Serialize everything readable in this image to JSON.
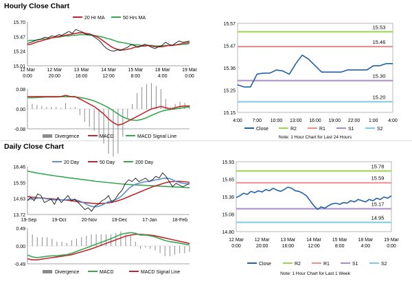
{
  "titles": {
    "hourly": "Hourly Close Chart",
    "daily": "Daily Close Chart"
  },
  "colors": {
    "price": "#1f3f7a",
    "ma_red": "#c0262c",
    "ma_green": "#35a84f",
    "ma_blue": "#5b8fd1",
    "r2": "#9bd34b",
    "r1": "#f28a8a",
    "s1": "#a98bc7",
    "s2": "#7ec9e0",
    "close": "#1f5fa8",
    "hist": "#8a8a8a",
    "axis": "#888888"
  },
  "chart_data": [
    {
      "id": "hourly_price",
      "type": "line",
      "ylim": [
        15.01,
        15.7
      ],
      "yticks": [
        "15.70",
        "15.47",
        "15.24",
        "15.01"
      ],
      "xticks": [
        [
          "12 Mar",
          "0:00"
        ],
        [
          "12 Mar",
          "20:00"
        ],
        [
          "13 Mar",
          "16:00"
        ],
        [
          "14 Mar",
          "12:00"
        ],
        [
          "15 Mar",
          "8:00"
        ],
        [
          "18 Mar",
          "4:00"
        ],
        [
          "19 Mar",
          "0:00"
        ]
      ],
      "legend": [
        "20 Hr MA",
        "50 Hrs MA"
      ],
      "series": [
        {
          "name": "Close",
          "values": [
            15.36,
            15.38,
            15.4,
            15.42,
            15.43,
            15.46,
            15.45,
            15.48,
            15.47,
            15.5,
            15.49,
            15.52,
            15.55,
            15.52,
            15.58,
            15.56,
            15.54,
            15.5,
            15.51,
            15.48,
            15.44,
            15.4,
            15.33,
            15.28,
            15.25,
            15.24,
            15.26,
            15.25,
            15.28,
            15.3,
            15.34,
            15.33,
            15.3,
            15.32,
            15.35,
            15.33,
            15.3,
            15.28,
            15.31,
            15.33,
            15.38,
            15.35,
            15.33,
            15.37,
            15.4,
            15.38,
            15.39,
            15.4
          ]
        },
        {
          "name": "20 Hr MA",
          "values": [
            15.34,
            15.35,
            15.37,
            15.39,
            15.4,
            15.42,
            15.43,
            15.45,
            15.46,
            15.47,
            15.48,
            15.49,
            15.5,
            15.51,
            15.52,
            15.53,
            15.53,
            15.52,
            15.51,
            15.49,
            15.47,
            15.44,
            15.4,
            15.36,
            15.32,
            15.29,
            15.27,
            15.26,
            15.26,
            15.27,
            15.28,
            15.3,
            15.31,
            15.32,
            15.32,
            15.33,
            15.32,
            15.31,
            15.31,
            15.31,
            15.32,
            15.33,
            15.33,
            15.34,
            15.35,
            15.36,
            15.37,
            15.38
          ]
        },
        {
          "name": "50 Hrs MA",
          "values": [
            15.4,
            15.41,
            15.41,
            15.42,
            15.43,
            15.43,
            15.44,
            15.45,
            15.46,
            15.46,
            15.47,
            15.48,
            15.48,
            15.49,
            15.49,
            15.5,
            15.5,
            15.5,
            15.49,
            15.49,
            15.48,
            15.47,
            15.46,
            15.44,
            15.43,
            15.41,
            15.39,
            15.38,
            15.37,
            15.36,
            15.35,
            15.34,
            15.34,
            15.33,
            15.33,
            15.33,
            15.33,
            15.32,
            15.32,
            15.32,
            15.33,
            15.33,
            15.33,
            15.34,
            15.34,
            15.35,
            15.35,
            15.36
          ]
        }
      ]
    },
    {
      "id": "hourly_macd",
      "type": "line",
      "ylim": [
        -0.08,
        0.08
      ],
      "yticks": [
        "0.08",
        "0.00",
        "-0.08"
      ],
      "legend": [
        "Divergence",
        "MACD",
        "MACD Signal Line"
      ],
      "series": [
        {
          "name": "MACD",
          "values": [
            0.05,
            0.05,
            0.05,
            0.05,
            0.05,
            0.05,
            0.05,
            0.05,
            0.055,
            0.05,
            0.05,
            0.04,
            0.03,
            0.02,
            0.01,
            -0.005,
            -0.02,
            -0.04,
            -0.055,
            -0.065,
            -0.06,
            -0.05,
            -0.04,
            -0.03,
            -0.02,
            -0.01,
            0.0,
            0.005,
            0.01,
            0.005,
            0.0,
            0.005,
            0.01,
            0.012,
            0.012
          ]
        },
        {
          "name": "MACD Signal Line",
          "values": [
            0.045,
            0.045,
            0.046,
            0.047,
            0.048,
            0.048,
            0.048,
            0.049,
            0.049,
            0.049,
            0.048,
            0.046,
            0.043,
            0.038,
            0.032,
            0.024,
            0.015,
            0.005,
            -0.007,
            -0.02,
            -0.032,
            -0.04,
            -0.045,
            -0.046,
            -0.042,
            -0.035,
            -0.026,
            -0.018,
            -0.01,
            -0.005,
            -0.002,
            0.0,
            0.003,
            0.006,
            0.008
          ]
        }
      ]
    },
    {
      "id": "hourly_levels",
      "type": "line",
      "ylim": [
        15.15,
        15.57
      ],
      "yticks": [
        "15.57",
        "15.47",
        "15.36",
        "15.25",
        "15.15"
      ],
      "xticks": [
        "4:00",
        "7:00",
        "10:00",
        "13:00",
        "16:00",
        "19:00",
        "22:00",
        "1:00",
        "4:00"
      ],
      "levels": [
        {
          "name": "R2",
          "value": 15.53,
          "label": "15.53"
        },
        {
          "name": "R1",
          "value": 15.46,
          "label": "15.46"
        },
        {
          "name": "S1",
          "value": 15.3,
          "label": "15.30"
        },
        {
          "name": "S2",
          "value": 15.2,
          "label": "15.20"
        }
      ],
      "legend": [
        "Close",
        "R2",
        "R1",
        "S1",
        "S2"
      ],
      "note": "Note: 1 Hour Chart for Last 24 Hours",
      "series": [
        {
          "name": "Close",
          "values": [
            15.28,
            15.27,
            15.27,
            15.33,
            15.335,
            15.335,
            15.35,
            15.345,
            15.33,
            15.38,
            15.42,
            15.4,
            15.37,
            15.34,
            15.34,
            15.34,
            15.34,
            15.35,
            15.35,
            15.35,
            15.35,
            15.37,
            15.37,
            15.38,
            15.38
          ]
        }
      ]
    },
    {
      "id": "daily_price",
      "type": "line",
      "ylim": [
        13.72,
        16.46
      ],
      "yticks": [
        "16.46",
        "15.55",
        "14.63",
        "13.72"
      ],
      "xticks": [
        "19-Sep",
        "19-Oct",
        "20-Nov",
        "19-Dec",
        "17-Jan",
        "18-Feb"
      ],
      "legend": [
        "20 Day",
        "50 Day",
        "200 Day"
      ],
      "series": [
        {
          "name": "Close",
          "values": [
            14.5,
            14.7,
            14.5,
            14.9,
            14.8,
            14.4,
            14.5,
            14.6,
            14.3,
            14.7,
            14.4,
            14.6,
            14.8,
            14.5,
            14.6,
            14.4,
            14.2,
            14.0,
            14.1,
            13.9,
            14.2,
            14.3,
            14.5,
            14.6,
            14.8,
            14.4,
            14.6,
            14.9,
            15.1,
            15.5,
            15.7,
            15.6,
            15.8,
            15.6,
            15.7,
            15.8,
            15.6,
            15.7,
            15.9,
            15.8,
            16.1,
            15.9,
            15.6,
            15.3,
            15.5,
            15.4,
            15.3,
            15.4,
            15.5
          ]
        },
        {
          "name": "20 Day",
          "values": [
            14.6,
            14.6,
            14.62,
            14.65,
            14.66,
            14.64,
            14.6,
            14.58,
            14.55,
            14.56,
            14.55,
            14.55,
            14.58,
            14.58,
            14.56,
            14.52,
            14.45,
            14.35,
            14.25,
            14.18,
            14.15,
            14.18,
            14.25,
            14.35,
            14.45,
            14.5,
            14.55,
            14.65,
            14.8,
            15.0,
            15.2,
            15.35,
            15.45,
            15.5,
            15.55,
            15.6,
            15.62,
            15.65,
            15.7,
            15.72,
            15.78,
            15.8,
            15.78,
            15.7,
            15.6,
            15.55,
            15.5,
            15.48,
            15.45
          ]
        },
        {
          "name": "50 Day",
          "values": [
            14.75,
            14.72,
            14.7,
            14.68,
            14.67,
            14.65,
            14.63,
            14.62,
            14.6,
            14.58,
            14.56,
            14.55,
            14.53,
            14.5,
            14.48,
            14.45,
            14.42,
            14.4,
            14.38,
            14.36,
            14.35,
            14.34,
            14.35,
            14.36,
            14.38,
            14.42,
            14.46,
            14.52,
            14.58,
            14.66,
            14.74,
            14.82,
            14.9,
            14.98,
            15.06,
            15.14,
            15.22,
            15.3,
            15.36,
            15.42,
            15.48,
            15.54,
            15.58,
            15.6,
            15.62,
            15.62,
            15.6,
            15.58,
            15.56
          ]
        },
        {
          "name": "200 Day",
          "values": [
            16.2,
            16.16,
            16.12,
            16.08,
            16.05,
            16.02,
            15.99,
            15.96,
            15.93,
            15.9,
            15.88,
            15.85,
            15.82,
            15.8,
            15.77,
            15.75,
            15.72,
            15.7,
            15.67,
            15.65,
            15.62,
            15.6,
            15.58,
            15.56,
            15.54,
            15.52,
            15.5,
            15.48,
            15.46,
            15.45,
            15.43,
            15.42,
            15.41,
            15.4,
            15.39,
            15.38,
            15.37,
            15.36,
            15.35,
            15.34,
            15.33,
            15.32,
            15.31,
            15.3,
            15.29,
            15.28,
            15.27,
            15.26,
            15.25
          ]
        }
      ]
    },
    {
      "id": "daily_macd",
      "type": "line",
      "ylim": [
        -0.49,
        0.49
      ],
      "yticks": [
        "0.49",
        "0.00",
        "-0.49"
      ],
      "legend": [
        "Divergence",
        "MACD",
        "MACD Signal Line"
      ],
      "series": [
        {
          "name": "MACD",
          "values": [
            -0.25,
            -0.3,
            -0.32,
            -0.3,
            -0.28,
            -0.27,
            -0.27,
            -0.25,
            -0.24,
            -0.2,
            -0.15,
            -0.1,
            -0.05,
            0.0,
            0.05,
            0.1,
            0.15,
            0.2,
            0.26,
            0.32,
            0.35,
            0.37,
            0.35,
            0.3,
            0.3,
            0.28,
            0.25,
            0.2,
            0.15,
            0.12,
            0.1,
            0.08,
            0.05,
            0.03
          ]
        },
        {
          "name": "MACD Signal Line",
          "values": [
            -0.35,
            -0.38,
            -0.38,
            -0.36,
            -0.34,
            -0.32,
            -0.3,
            -0.28,
            -0.26,
            -0.24,
            -0.2,
            -0.16,
            -0.12,
            -0.08,
            -0.03,
            0.02,
            0.07,
            0.12,
            0.17,
            0.22,
            0.27,
            0.3,
            0.32,
            0.32,
            0.31,
            0.3,
            0.28,
            0.25,
            0.22,
            0.19,
            0.16,
            0.13,
            0.1,
            0.07
          ]
        }
      ]
    },
    {
      "id": "daily_levels",
      "type": "line",
      "ylim": [
        14.8,
        15.93
      ],
      "yticks": [
        "15.93",
        "15.65",
        "15.36",
        "15.08",
        "14.80"
      ],
      "xticks": [
        [
          "12 Mar",
          "0:00"
        ],
        [
          "12 Mar",
          "20:00"
        ],
        [
          "13 Mar",
          "16:00"
        ],
        [
          "14 Mar",
          "12:00"
        ],
        [
          "15 Mar",
          "8:00"
        ],
        [
          "18 Mar",
          "4:00"
        ],
        [
          "19 Mar",
          "0:00"
        ]
      ],
      "levels": [
        {
          "name": "R2",
          "value": 15.78,
          "label": "15.78"
        },
        {
          "name": "R1",
          "value": 15.59,
          "label": "15.59"
        },
        {
          "name": "S1",
          "value": 15.17,
          "label": "15.17"
        },
        {
          "name": "S2",
          "value": 14.95,
          "label": "14.95"
        }
      ],
      "legend": [
        "Close",
        "R2",
        "R1",
        "S1",
        "S2"
      ],
      "note": "Note: 1 Hour Chart for Last 1 Week",
      "series": [
        {
          "name": "Close",
          "values": [
            15.35,
            15.38,
            15.42,
            15.4,
            15.45,
            15.43,
            15.46,
            15.44,
            15.48,
            15.46,
            15.5,
            15.47,
            15.45,
            15.48,
            15.52,
            15.5,
            15.46,
            15.45,
            15.42,
            15.38,
            15.3,
            15.22,
            15.16,
            15.2,
            15.18,
            15.22,
            15.25,
            15.26,
            15.24,
            15.27,
            15.26,
            15.3,
            15.28,
            15.32,
            15.3,
            15.28,
            15.32,
            15.3,
            15.34,
            15.32,
            15.36,
            15.34,
            15.38
          ]
        }
      ]
    }
  ]
}
